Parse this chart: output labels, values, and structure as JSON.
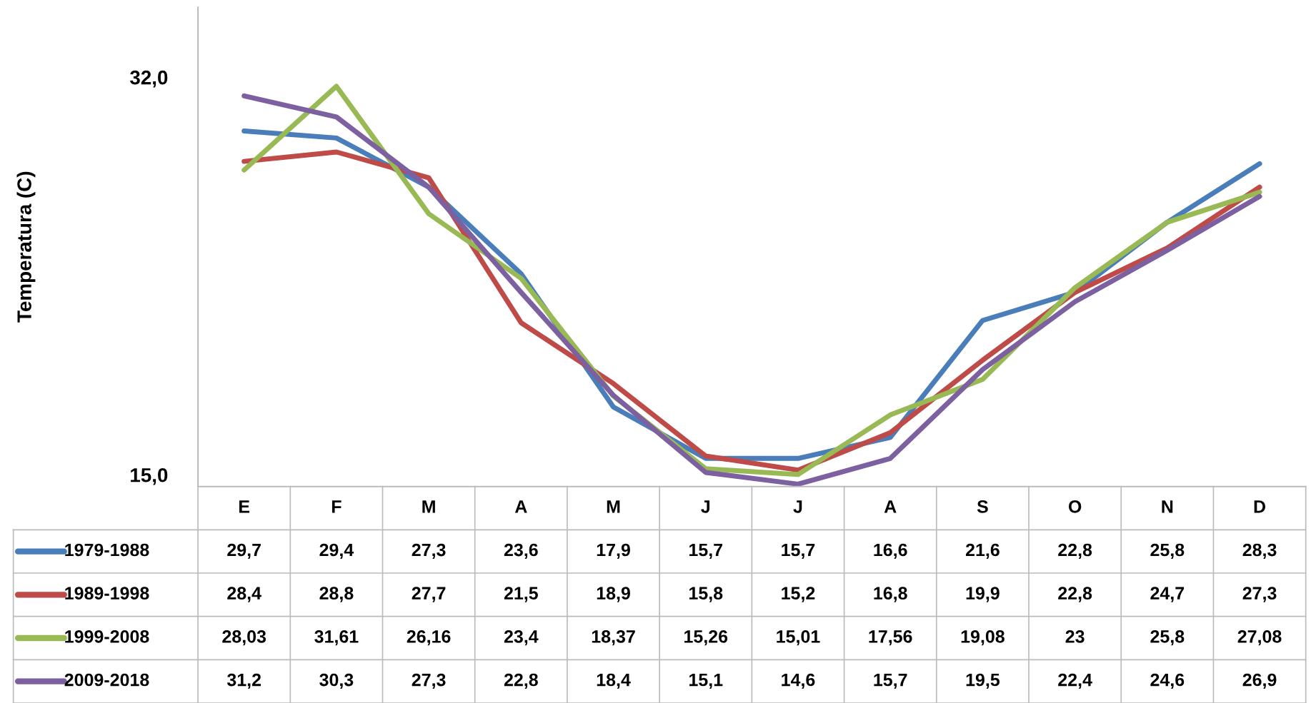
{
  "chart_data": {
    "type": "line",
    "ylabel": "Temperatura (C)",
    "categories": [
      "E",
      "F",
      "M",
      "A",
      "M",
      "J",
      "J",
      "A",
      "S",
      "O",
      "N",
      "D"
    ],
    "ylim": [
      14.5,
      35
    ],
    "yticks": [
      {
        "value": 15,
        "label": "15,0"
      },
      {
        "value": 32,
        "label": "32,0"
      }
    ],
    "grid": false,
    "legend": "bottom",
    "marker": "none",
    "line_style": "solid",
    "series": [
      {
        "name": "1979-1988",
        "color": "#4a7ebb",
        "values": [
          29.7,
          29.4,
          27.3,
          23.6,
          17.9,
          15.7,
          15.7,
          16.6,
          21.6,
          22.8,
          25.8,
          28.3
        ],
        "value_labels": [
          "29,7",
          "29,4",
          "27,3",
          "23,6",
          "17,9",
          "15,7",
          "15,7",
          "16,6",
          "21,6",
          "22,8",
          "25,8",
          "28,3"
        ]
      },
      {
        "name": "1989-1998",
        "color": "#be4b48",
        "values": [
          28.4,
          28.8,
          27.7,
          21.5,
          18.9,
          15.8,
          15.2,
          16.8,
          19.9,
          22.8,
          24.7,
          27.3
        ],
        "value_labels": [
          "28,4",
          "28,8",
          "27,7",
          "21,5",
          "18,9",
          "15,8",
          "15,2",
          "16,8",
          "19,9",
          "22,8",
          "24,7",
          "27,3"
        ]
      },
      {
        "name": "1999-2008",
        "color": "#98b954",
        "values": [
          28.03,
          31.61,
          26.16,
          23.4,
          18.37,
          15.26,
          15.01,
          17.56,
          19.08,
          23,
          25.8,
          27.08
        ],
        "value_labels": [
          "28,03",
          "31,61",
          "26,16",
          "23,4",
          "18,37",
          "15,26",
          "15,01",
          "17,56",
          "19,08",
          "23",
          "25,8",
          "27,08"
        ]
      },
      {
        "name": "2009-2018",
        "color": "#7d60a0",
        "values": [
          31.2,
          30.3,
          27.3,
          22.8,
          18.4,
          15.1,
          14.6,
          15.7,
          19.5,
          22.4,
          24.6,
          26.9
        ],
        "value_labels": [
          "31,2",
          "30,3",
          "27,3",
          "22,8",
          "18,4",
          "15,1",
          "14,6",
          "15,7",
          "19,5",
          "22,4",
          "24,6",
          "26,9"
        ]
      }
    ]
  }
}
